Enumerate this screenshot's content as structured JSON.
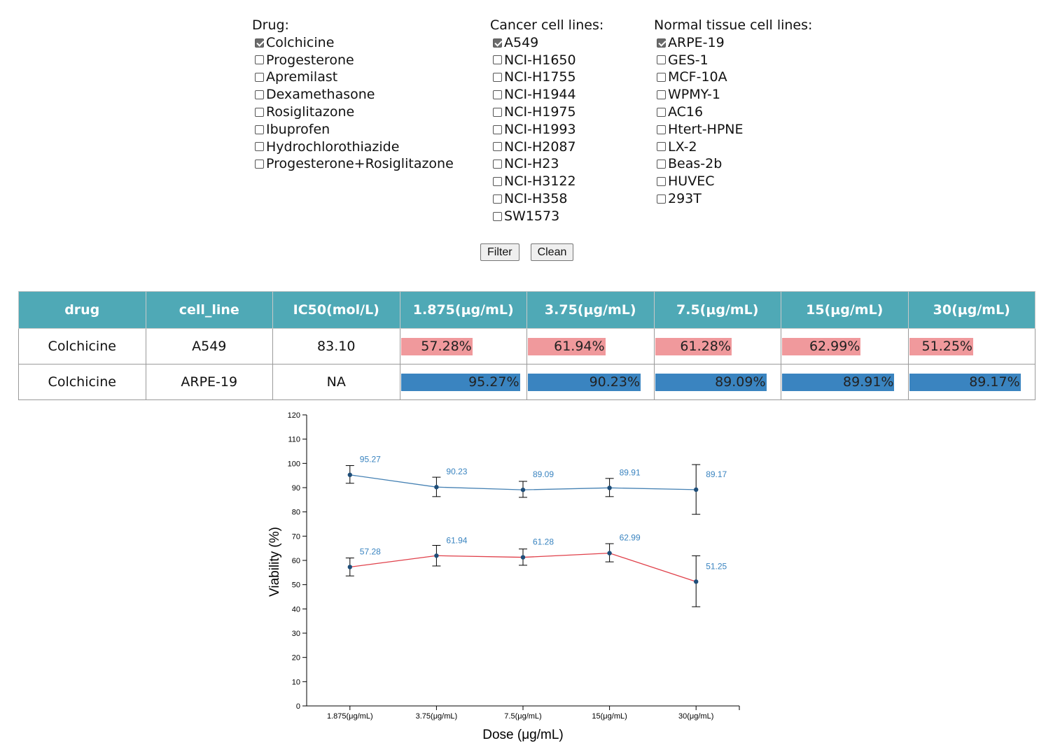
{
  "filters": {
    "drug": {
      "title": "Drug:",
      "options": [
        {
          "label": "Colchicine",
          "checked": true
        },
        {
          "label": "Progesterone",
          "checked": false
        },
        {
          "label": "Apremilast",
          "checked": false
        },
        {
          "label": "Dexamethasone",
          "checked": false
        },
        {
          "label": "Rosiglitazone",
          "checked": false
        },
        {
          "label": "Ibuprofen",
          "checked": false
        },
        {
          "label": "Hydrochlorothiazide",
          "checked": false
        },
        {
          "label": "Progesterone+Rosiglitazone",
          "checked": false
        }
      ]
    },
    "cancer": {
      "title": "Cancer cell lines:",
      "options": [
        {
          "label": "A549",
          "checked": true
        },
        {
          "label": "NCI-H1650",
          "checked": false
        },
        {
          "label": "NCI-H1755",
          "checked": false
        },
        {
          "label": "NCI-H1944",
          "checked": false
        },
        {
          "label": "NCI-H1975",
          "checked": false
        },
        {
          "label": "NCI-H1993",
          "checked": false
        },
        {
          "label": "NCI-H2087",
          "checked": false
        },
        {
          "label": "NCI-H23",
          "checked": false
        },
        {
          "label": "NCI-H3122",
          "checked": false
        },
        {
          "label": "NCI-H358",
          "checked": false
        },
        {
          "label": "SW1573",
          "checked": false
        }
      ]
    },
    "normal": {
      "title": "Normal tissue cell lines:",
      "options": [
        {
          "label": "ARPE-19",
          "checked": true
        },
        {
          "label": "GES-1",
          "checked": false
        },
        {
          "label": "MCF-10A",
          "checked": false
        },
        {
          "label": "WPMY-1",
          "checked": false
        },
        {
          "label": "AC16",
          "checked": false
        },
        {
          "label": "Htert-HPNE",
          "checked": false
        },
        {
          "label": "LX-2",
          "checked": false
        },
        {
          "label": "Beas-2b",
          "checked": false
        },
        {
          "label": "HUVEC",
          "checked": false
        },
        {
          "label": "293T",
          "checked": false
        }
      ]
    }
  },
  "buttons": {
    "filter": "Filter",
    "clean": "Clean"
  },
  "table": {
    "headers": [
      "drug",
      "cell_line",
      "IC50(mol/L)",
      "1.875(μg/mL)",
      "3.75(μg/mL)",
      "7.5(μg/mL)",
      "15(μg/mL)",
      "30(μg/mL)"
    ],
    "rows": [
      {
        "drug": "Colchicine",
        "cell_line": "A549",
        "ic50": "83.10",
        "type": "cancer",
        "values": [
          "57.28%",
          "61.94%",
          "61.28%",
          "62.99%",
          "51.25%"
        ],
        "fractions": [
          0.5728,
          0.6194,
          0.6128,
          0.6299,
          0.5125
        ]
      },
      {
        "drug": "Colchicine",
        "cell_line": "ARPE-19",
        "ic50": "NA",
        "type": "normal",
        "values": [
          "95.27%",
          "90.23%",
          "89.09%",
          "89.91%",
          "89.17%"
        ],
        "fractions": [
          0.9527,
          0.9023,
          0.8909,
          0.8991,
          0.8917
        ]
      }
    ]
  },
  "colors": {
    "header_bg": "#4fa9b6",
    "cancer_bar": "#f0999c",
    "normal_bar": "#3a84c0",
    "normal_line": "#4682b4",
    "cancer_line": "#e0404a"
  },
  "chart_data": {
    "type": "line",
    "categories": [
      "1.875(μg/mL)",
      "3.75(μg/mL)",
      "7.5(μg/mL)",
      "15(μg/mL)",
      "30(μg/mL)"
    ],
    "xlabel": "Dose (μg/mL)",
    "ylabel": "Viability (%)",
    "ylim": [
      0,
      120
    ],
    "yticks": [
      0,
      10,
      20,
      30,
      40,
      50,
      60,
      70,
      80,
      90,
      100,
      110,
      120
    ],
    "grid": false,
    "series": [
      {
        "color": "#4682b4",
        "values": [
          95.27,
          90.23,
          89.09,
          89.91,
          89.17
        ],
        "labels": [
          "95.27",
          "90.23",
          "89.09",
          "89.91",
          "89.17"
        ],
        "err_low": [
          91.8,
          86.3,
          86.0,
          86.3,
          79.0
        ],
        "err_high": [
          99.1,
          94.3,
          92.6,
          93.8,
          99.5
        ]
      },
      {
        "color": "#e0404a",
        "values": [
          57.28,
          61.94,
          61.28,
          62.99,
          51.25
        ],
        "labels": [
          "57.28",
          "61.94",
          "61.28",
          "62.99",
          "51.25"
        ],
        "err_low": [
          53.6,
          57.7,
          58.0,
          59.4,
          40.9
        ],
        "err_high": [
          61.0,
          66.2,
          64.7,
          66.9,
          61.9
        ]
      }
    ]
  }
}
